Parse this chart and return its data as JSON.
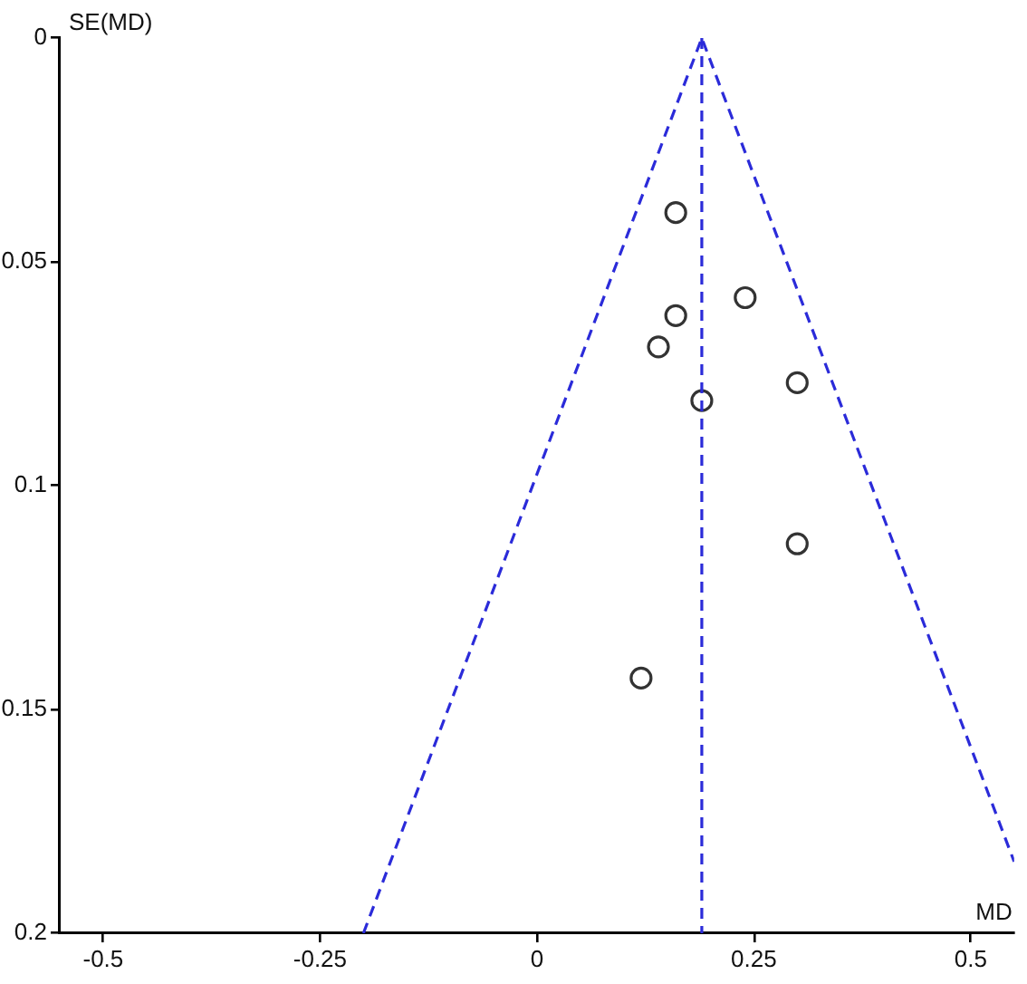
{
  "chart_data": {
    "type": "scatter",
    "xlabel": "MD",
    "ylabel": "SE(MD)",
    "xlim": [
      -0.55,
      0.55
    ],
    "ylim": [
      0.2,
      0
    ],
    "xticks": [
      -0.5,
      -0.25,
      0,
      0.25,
      0.5
    ],
    "yticks": [
      0,
      0.05,
      0.1,
      0.15,
      0.2
    ],
    "legend": false,
    "series": [
      {
        "type": "scatter",
        "color": "#333333",
        "marker": "circle",
        "x": [
          0.16,
          0.24,
          0.16,
          0.14,
          0.19,
          0.3,
          0.3,
          0.12
        ],
        "values": [
          0.039,
          0.058,
          0.062,
          0.069,
          0.081,
          0.077,
          0.113,
          0.143
        ]
      },
      {
        "type": "line",
        "color": "#2b2bd9",
        "marker": "none",
        "line_style": "dashed",
        "x": [
          -0.2,
          0.19,
          0.55
        ],
        "values": [
          0.2,
          0,
          0.184
        ]
      }
    ],
    "ref_lines": [
      {
        "axis": "x",
        "value": 0.19,
        "color": "#2b2bd9",
        "line_style": "dashed"
      }
    ]
  }
}
